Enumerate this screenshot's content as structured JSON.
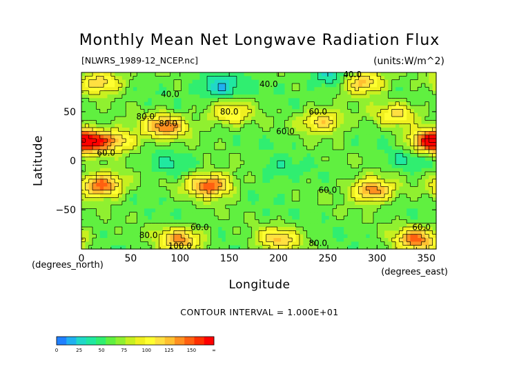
{
  "chart_data": {
    "type": "heatmap",
    "title": "Monthly Mean Net Longwave Radiation Flux",
    "subtitle_left": "[NLWRS_1989-12_NCEP.nc]",
    "subtitle_right": "(units:W/m^2)",
    "xlabel": "Longitude",
    "ylabel": "Latitude",
    "x_unit_label": "(degrees_east)",
    "y_unit_label": "(degrees_north)",
    "xlim": [
      0,
      360
    ],
    "ylim": [
      -90,
      90
    ],
    "x_ticks": [
      0,
      50,
      100,
      150,
      200,
      250,
      300,
      350
    ],
    "y_ticks": [
      -50,
      0,
      50
    ],
    "contour_interval_text": "CONTOUR INTERVAL = 1.000E+01",
    "colorbar": {
      "ticks": [
        "0",
        "25",
        "50",
        "75",
        "100",
        "125",
        "150",
        "∞"
      ],
      "levels": [
        0,
        10,
        20,
        30,
        40,
        50,
        60,
        70,
        80,
        90,
        100,
        110,
        120,
        130,
        140,
        150,
        160
      ],
      "colors": [
        "#2080ff",
        "#20b0f0",
        "#20d8c8",
        "#20e8a0",
        "#30ee70",
        "#60f040",
        "#90f030",
        "#c8f020",
        "#f0f020",
        "#ffff30",
        "#ffe040",
        "#ffc030",
        "#ff9020",
        "#ff6010",
        "#ff3000",
        "#ff0000"
      ]
    },
    "contour_labels": [
      {
        "lon": 190,
        "lat": 78,
        "text": "40.0"
      },
      {
        "lon": 275,
        "lat": 88,
        "text": "40.0"
      },
      {
        "lon": 90,
        "lat": 68,
        "text": "40.0"
      },
      {
        "lon": 150,
        "lat": 50,
        "text": "80.0"
      },
      {
        "lon": 65,
        "lat": 45,
        "text": "80.0"
      },
      {
        "lon": 88,
        "lat": 38,
        "text": "80.0"
      },
      {
        "lon": 207,
        "lat": 30,
        "text": "60.0"
      },
      {
        "lon": 240,
        "lat": 50,
        "text": "60.0"
      },
      {
        "lon": 25,
        "lat": 8,
        "text": "60.0"
      },
      {
        "lon": 250,
        "lat": -30,
        "text": "60.0"
      },
      {
        "lon": 120,
        "lat": -68,
        "text": "60.0"
      },
      {
        "lon": 345,
        "lat": -68,
        "text": "60.0"
      },
      {
        "lon": 68,
        "lat": -76,
        "text": "80.0"
      },
      {
        "lon": 240,
        "lat": -84,
        "text": "80.0"
      },
      {
        "lon": 100,
        "lat": -87,
        "text": "100.0"
      }
    ],
    "field_features": [
      {
        "lon": 20,
        "lat": -25,
        "value": 140
      },
      {
        "lon": 130,
        "lat": -25,
        "value": 140
      },
      {
        "lon": 295,
        "lat": -30,
        "value": 130
      },
      {
        "lon": 85,
        "lat": 35,
        "value": 130
      },
      {
        "lon": 35,
        "lat": 20,
        "value": 110
      },
      {
        "lon": 5,
        "lat": 20,
        "value": 120
      },
      {
        "lon": 355,
        "lat": 20,
        "value": 120
      },
      {
        "lon": 150,
        "lat": 48,
        "value": 100
      },
      {
        "lon": 245,
        "lat": 40,
        "value": 110
      },
      {
        "lon": 320,
        "lat": 48,
        "value": 100
      },
      {
        "lon": 100,
        "lat": -80,
        "value": 120
      },
      {
        "lon": 200,
        "lat": -80,
        "value": 110
      },
      {
        "lon": 340,
        "lat": -80,
        "value": 130
      },
      {
        "lon": 20,
        "lat": 80,
        "value": 110
      },
      {
        "lon": 285,
        "lat": 80,
        "value": 120
      },
      {
        "lon": 140,
        "lat": 75,
        "value": 20
      },
      {
        "lon": 255,
        "lat": 85,
        "value": 25
      },
      {
        "lon": 200,
        "lat": -10,
        "value": 40
      },
      {
        "lon": 90,
        "lat": -5,
        "value": 40
      },
      {
        "lon": 330,
        "lat": 0,
        "value": 40
      }
    ]
  }
}
